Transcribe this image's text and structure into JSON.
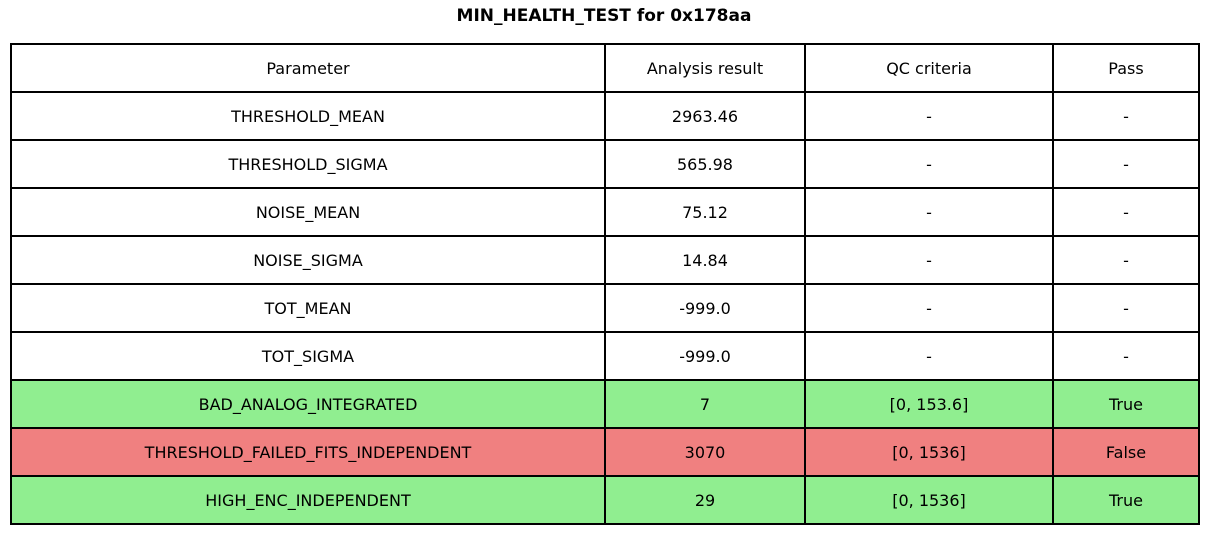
{
  "title": "MIN_HEALTH_TEST for 0x178aa",
  "colors": {
    "pass": "#90ee90",
    "fail": "#f08080",
    "default": "#ffffff",
    "border": "#000000"
  },
  "table": {
    "columns": [
      "Parameter",
      "Analysis result",
      "QC criteria",
      "Pass"
    ],
    "rows": [
      {
        "parameter": "THRESHOLD_MEAN",
        "result": "2963.46",
        "qc": "-",
        "pass": "-",
        "status": "none"
      },
      {
        "parameter": "THRESHOLD_SIGMA",
        "result": "565.98",
        "qc": "-",
        "pass": "-",
        "status": "none"
      },
      {
        "parameter": "NOISE_MEAN",
        "result": "75.12",
        "qc": "-",
        "pass": "-",
        "status": "none"
      },
      {
        "parameter": "NOISE_SIGMA",
        "result": "14.84",
        "qc": "-",
        "pass": "-",
        "status": "none"
      },
      {
        "parameter": "TOT_MEAN",
        "result": "-999.0",
        "qc": "-",
        "pass": "-",
        "status": "none"
      },
      {
        "parameter": "TOT_SIGMA",
        "result": "-999.0",
        "qc": "-",
        "pass": "-",
        "status": "none"
      },
      {
        "parameter": "BAD_ANALOG_INTEGRATED",
        "result": "7",
        "qc": "[0, 153.6]",
        "pass": "True",
        "status": "pass"
      },
      {
        "parameter": "THRESHOLD_FAILED_FITS_INDEPENDENT",
        "result": "3070",
        "qc": "[0, 1536]",
        "pass": "False",
        "status": "fail"
      },
      {
        "parameter": "HIGH_ENC_INDEPENDENT",
        "result": "29",
        "qc": "[0, 1536]",
        "pass": "True",
        "status": "pass"
      }
    ]
  }
}
